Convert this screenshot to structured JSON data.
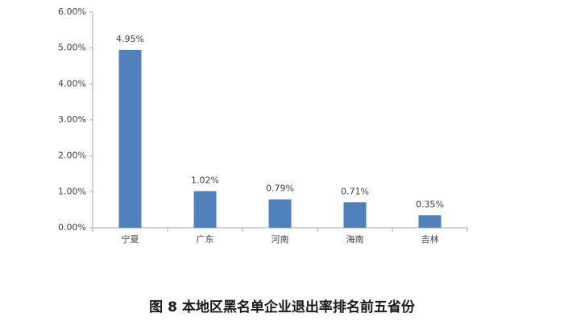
{
  "chart_data": {
    "type": "bar",
    "title": "图 8  本地区黑名单企业退出率排名前五省份",
    "categories": [
      "宁夏",
      "广东",
      "河南",
      "海南",
      "吉林"
    ],
    "values": [
      4.95,
      1.02,
      0.79,
      0.71,
      0.35
    ],
    "value_labels": [
      "4.95%",
      "1.02%",
      "0.79%",
      "0.71%",
      "0.35%"
    ],
    "color": "#4f81bd",
    "ylim": [
      0,
      6
    ],
    "yticks": [
      {
        "value": 0,
        "label": "0.00%"
      },
      {
        "value": 1,
        "label": "1.00%"
      },
      {
        "value": 2,
        "label": "2.00%"
      },
      {
        "value": 3,
        "label": "3.00%"
      },
      {
        "value": 4,
        "label": "4.00%"
      },
      {
        "value": 5,
        "label": "5.00%"
      },
      {
        "value": 6,
        "label": "6.00%"
      }
    ],
    "grid": false
  }
}
